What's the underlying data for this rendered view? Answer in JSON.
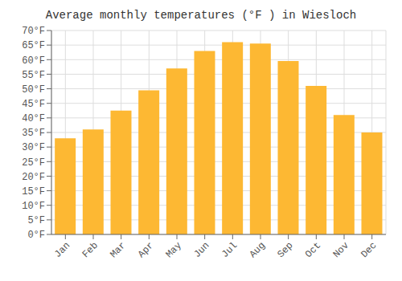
{
  "chart_data": {
    "type": "bar",
    "title": "Average monthly temperatures (°F ) in Wiesloch",
    "categories": [
      "Jan",
      "Feb",
      "Mar",
      "Apr",
      "May",
      "Jun",
      "Jul",
      "Aug",
      "Sep",
      "Oct",
      "Nov",
      "Dec"
    ],
    "values": [
      33.0,
      36.0,
      42.5,
      49.5,
      57.0,
      63.0,
      66.0,
      65.5,
      59.5,
      51.0,
      41.0,
      35.0
    ],
    "color": "#FDB833",
    "ylim": [
      0,
      70
    ],
    "yticks": [
      {
        "value": 0,
        "label": "0°F"
      },
      {
        "value": 5,
        "label": "5°F"
      },
      {
        "value": 10,
        "label": "10°F"
      },
      {
        "value": 15,
        "label": "15°F"
      },
      {
        "value": 20,
        "label": "20°F"
      },
      {
        "value": 25,
        "label": "25°F"
      },
      {
        "value": 30,
        "label": "30°F"
      },
      {
        "value": 35,
        "label": "35°F"
      },
      {
        "value": 40,
        "label": "40°F"
      },
      {
        "value": 45,
        "label": "45°F"
      },
      {
        "value": 50,
        "label": "50°F"
      },
      {
        "value": 55,
        "label": "55°F"
      },
      {
        "value": 60,
        "label": "60°F"
      },
      {
        "value": 65,
        "label": "65°F"
      },
      {
        "value": 70,
        "label": "70°F"
      }
    ],
    "grid": true
  }
}
